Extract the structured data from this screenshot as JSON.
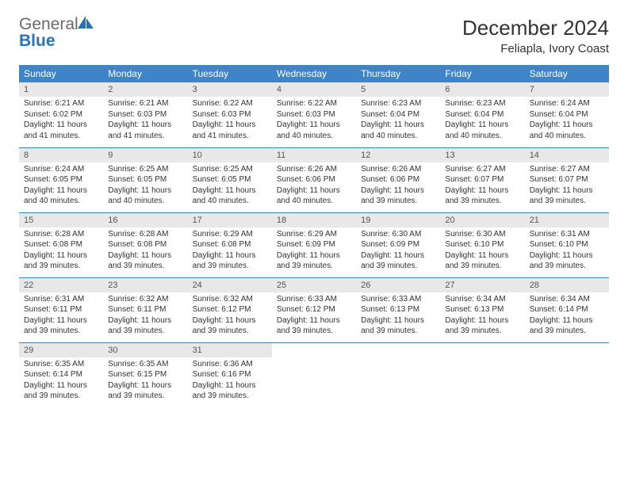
{
  "brand": {
    "part1": "General",
    "part2": "Blue"
  },
  "title": "December 2024",
  "location": "Feliapla, Ivory Coast",
  "colors": {
    "header_bg": "#3d85c6",
    "header_fg": "#ffffff",
    "daynum_bg": "#e8e8e8",
    "rule": "#3d85c6",
    "brand_gray": "#6a6a6a",
    "brand_blue": "#2a72b5"
  },
  "weekdays": [
    "Sunday",
    "Monday",
    "Tuesday",
    "Wednesday",
    "Thursday",
    "Friday",
    "Saturday"
  ],
  "weeks": [
    [
      {
        "n": "1",
        "sr": "Sunrise: 6:21 AM",
        "ss": "Sunset: 6:02 PM",
        "d1": "Daylight: 11 hours",
        "d2": "and 41 minutes."
      },
      {
        "n": "2",
        "sr": "Sunrise: 6:21 AM",
        "ss": "Sunset: 6:03 PM",
        "d1": "Daylight: 11 hours",
        "d2": "and 41 minutes."
      },
      {
        "n": "3",
        "sr": "Sunrise: 6:22 AM",
        "ss": "Sunset: 6:03 PM",
        "d1": "Daylight: 11 hours",
        "d2": "and 41 minutes."
      },
      {
        "n": "4",
        "sr": "Sunrise: 6:22 AM",
        "ss": "Sunset: 6:03 PM",
        "d1": "Daylight: 11 hours",
        "d2": "and 40 minutes."
      },
      {
        "n": "5",
        "sr": "Sunrise: 6:23 AM",
        "ss": "Sunset: 6:04 PM",
        "d1": "Daylight: 11 hours",
        "d2": "and 40 minutes."
      },
      {
        "n": "6",
        "sr": "Sunrise: 6:23 AM",
        "ss": "Sunset: 6:04 PM",
        "d1": "Daylight: 11 hours",
        "d2": "and 40 minutes."
      },
      {
        "n": "7",
        "sr": "Sunrise: 6:24 AM",
        "ss": "Sunset: 6:04 PM",
        "d1": "Daylight: 11 hours",
        "d2": "and 40 minutes."
      }
    ],
    [
      {
        "n": "8",
        "sr": "Sunrise: 6:24 AM",
        "ss": "Sunset: 6:05 PM",
        "d1": "Daylight: 11 hours",
        "d2": "and 40 minutes."
      },
      {
        "n": "9",
        "sr": "Sunrise: 6:25 AM",
        "ss": "Sunset: 6:05 PM",
        "d1": "Daylight: 11 hours",
        "d2": "and 40 minutes."
      },
      {
        "n": "10",
        "sr": "Sunrise: 6:25 AM",
        "ss": "Sunset: 6:05 PM",
        "d1": "Daylight: 11 hours",
        "d2": "and 40 minutes."
      },
      {
        "n": "11",
        "sr": "Sunrise: 6:26 AM",
        "ss": "Sunset: 6:06 PM",
        "d1": "Daylight: 11 hours",
        "d2": "and 40 minutes."
      },
      {
        "n": "12",
        "sr": "Sunrise: 6:26 AM",
        "ss": "Sunset: 6:06 PM",
        "d1": "Daylight: 11 hours",
        "d2": "and 39 minutes."
      },
      {
        "n": "13",
        "sr": "Sunrise: 6:27 AM",
        "ss": "Sunset: 6:07 PM",
        "d1": "Daylight: 11 hours",
        "d2": "and 39 minutes."
      },
      {
        "n": "14",
        "sr": "Sunrise: 6:27 AM",
        "ss": "Sunset: 6:07 PM",
        "d1": "Daylight: 11 hours",
        "d2": "and 39 minutes."
      }
    ],
    [
      {
        "n": "15",
        "sr": "Sunrise: 6:28 AM",
        "ss": "Sunset: 6:08 PM",
        "d1": "Daylight: 11 hours",
        "d2": "and 39 minutes."
      },
      {
        "n": "16",
        "sr": "Sunrise: 6:28 AM",
        "ss": "Sunset: 6:08 PM",
        "d1": "Daylight: 11 hours",
        "d2": "and 39 minutes."
      },
      {
        "n": "17",
        "sr": "Sunrise: 6:29 AM",
        "ss": "Sunset: 6:08 PM",
        "d1": "Daylight: 11 hours",
        "d2": "and 39 minutes."
      },
      {
        "n": "18",
        "sr": "Sunrise: 6:29 AM",
        "ss": "Sunset: 6:09 PM",
        "d1": "Daylight: 11 hours",
        "d2": "and 39 minutes."
      },
      {
        "n": "19",
        "sr": "Sunrise: 6:30 AM",
        "ss": "Sunset: 6:09 PM",
        "d1": "Daylight: 11 hours",
        "d2": "and 39 minutes."
      },
      {
        "n": "20",
        "sr": "Sunrise: 6:30 AM",
        "ss": "Sunset: 6:10 PM",
        "d1": "Daylight: 11 hours",
        "d2": "and 39 minutes."
      },
      {
        "n": "21",
        "sr": "Sunrise: 6:31 AM",
        "ss": "Sunset: 6:10 PM",
        "d1": "Daylight: 11 hours",
        "d2": "and 39 minutes."
      }
    ],
    [
      {
        "n": "22",
        "sr": "Sunrise: 6:31 AM",
        "ss": "Sunset: 6:11 PM",
        "d1": "Daylight: 11 hours",
        "d2": "and 39 minutes."
      },
      {
        "n": "23",
        "sr": "Sunrise: 6:32 AM",
        "ss": "Sunset: 6:11 PM",
        "d1": "Daylight: 11 hours",
        "d2": "and 39 minutes."
      },
      {
        "n": "24",
        "sr": "Sunrise: 6:32 AM",
        "ss": "Sunset: 6:12 PM",
        "d1": "Daylight: 11 hours",
        "d2": "and 39 minutes."
      },
      {
        "n": "25",
        "sr": "Sunrise: 6:33 AM",
        "ss": "Sunset: 6:12 PM",
        "d1": "Daylight: 11 hours",
        "d2": "and 39 minutes."
      },
      {
        "n": "26",
        "sr": "Sunrise: 6:33 AM",
        "ss": "Sunset: 6:13 PM",
        "d1": "Daylight: 11 hours",
        "d2": "and 39 minutes."
      },
      {
        "n": "27",
        "sr": "Sunrise: 6:34 AM",
        "ss": "Sunset: 6:13 PM",
        "d1": "Daylight: 11 hours",
        "d2": "and 39 minutes."
      },
      {
        "n": "28",
        "sr": "Sunrise: 6:34 AM",
        "ss": "Sunset: 6:14 PM",
        "d1": "Daylight: 11 hours",
        "d2": "and 39 minutes."
      }
    ],
    [
      {
        "n": "29",
        "sr": "Sunrise: 6:35 AM",
        "ss": "Sunset: 6:14 PM",
        "d1": "Daylight: 11 hours",
        "d2": "and 39 minutes."
      },
      {
        "n": "30",
        "sr": "Sunrise: 6:35 AM",
        "ss": "Sunset: 6:15 PM",
        "d1": "Daylight: 11 hours",
        "d2": "and 39 minutes."
      },
      {
        "n": "31",
        "sr": "Sunrise: 6:36 AM",
        "ss": "Sunset: 6:16 PM",
        "d1": "Daylight: 11 hours",
        "d2": "and 39 minutes."
      },
      null,
      null,
      null,
      null
    ]
  ]
}
